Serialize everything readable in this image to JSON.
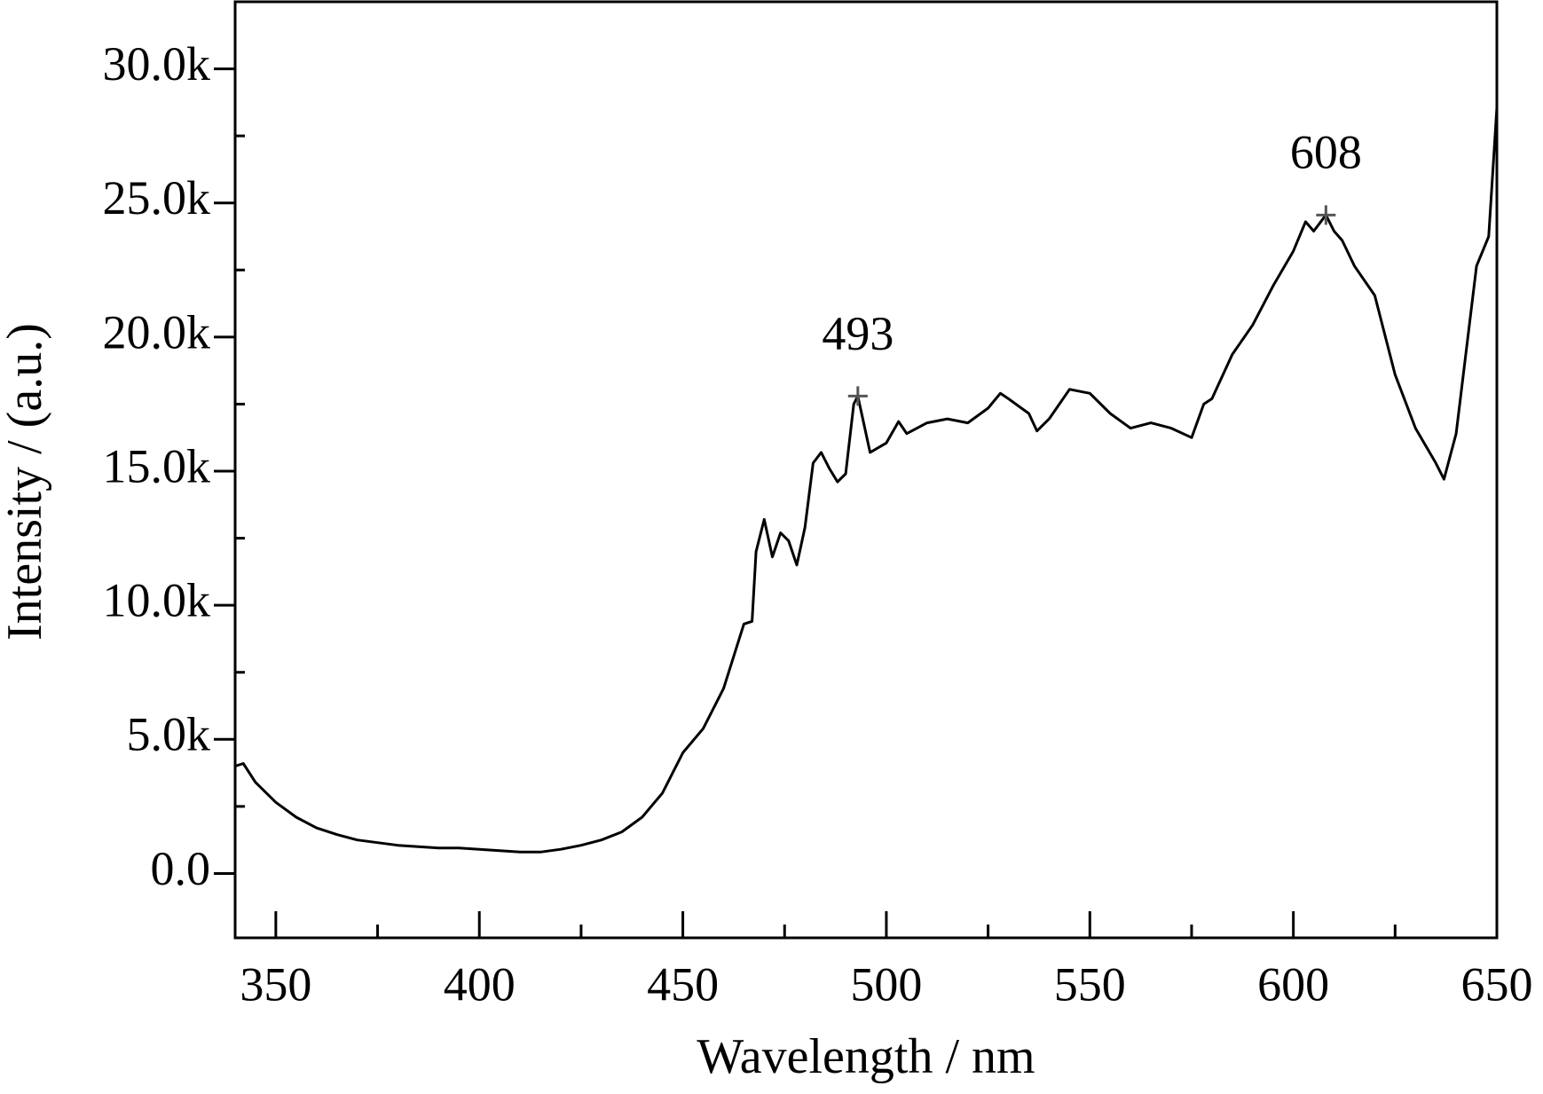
{
  "chart_data": {
    "type": "line",
    "x_label": "Wavelength / nm",
    "y_label": "Intensity / (a.u.)",
    "x": [
      340,
      342,
      345,
      350,
      355,
      360,
      365,
      370,
      375,
      380,
      385,
      390,
      395,
      400,
      405,
      410,
      415,
      420,
      425,
      430,
      435,
      440,
      445,
      450,
      455,
      460,
      465,
      467,
      468,
      470,
      472,
      474,
      476,
      478,
      480,
      482,
      484,
      486,
      488,
      490,
      492,
      493,
      494,
      496,
      500,
      503,
      505,
      510,
      515,
      520,
      525,
      528,
      530,
      535,
      537,
      540,
      545,
      550,
      555,
      560,
      565,
      570,
      575,
      578,
      580,
      585,
      590,
      595,
      600,
      603,
      605,
      608,
      610,
      612,
      615,
      620,
      625,
      630,
      635,
      637,
      640,
      645,
      648,
      650
    ],
    "series": [
      {
        "name": "spectrum",
        "color": "#000000",
        "values": [
          4000,
          4100,
          3400,
          2650,
          2100,
          1700,
          1450,
          1250,
          1150,
          1050,
          1000,
          950,
          950,
          900,
          850,
          800,
          800,
          900,
          1050,
          1250,
          1550,
          2100,
          3000,
          4500,
          5400,
          6900,
          9300,
          9400,
          12000,
          13200,
          11800,
          12700,
          12400,
          11500,
          12900,
          15300,
          15700,
          15100,
          14600,
          14900,
          17500,
          17800,
          17100,
          15700,
          16050,
          16850,
          16400,
          16800,
          16950,
          16800,
          17350,
          17900,
          17700,
          17150,
          16500,
          16950,
          18050,
          17900,
          17150,
          16600,
          16800,
          16600,
          16250,
          17500,
          17700,
          19350,
          20450,
          21900,
          23200,
          24300,
          23950,
          24550,
          23950,
          23600,
          22650,
          21550,
          18600,
          16600,
          15300,
          14700,
          16400,
          22650,
          23750,
          28550
        ]
      }
    ],
    "xlim": [
      340,
      650
    ],
    "ylim": [
      -2400,
      32500
    ],
    "xticks": [
      350,
      400,
      450,
      500,
      550,
      600,
      650
    ],
    "xminorticks": [
      375,
      425,
      475,
      525,
      575,
      625
    ],
    "yticks": [
      {
        "value": 0,
        "label": "0.0"
      },
      {
        "value": 5000,
        "label": "5.0k"
      },
      {
        "value": 10000,
        "label": "10.0k"
      },
      {
        "value": 15000,
        "label": "15.0k"
      },
      {
        "value": 20000,
        "label": "20.0k"
      },
      {
        "value": 25000,
        "label": "25.0k"
      },
      {
        "value": 30000,
        "label": "30.0k"
      }
    ],
    "yminorticks": [
      2500,
      7500,
      12500,
      17500,
      22500,
      27500
    ],
    "annotations": [
      {
        "label": "493",
        "x": 493,
        "y": 17800
      },
      {
        "label": "608",
        "x": 608,
        "y": 24550
      }
    ],
    "marker_color": "#555555"
  }
}
